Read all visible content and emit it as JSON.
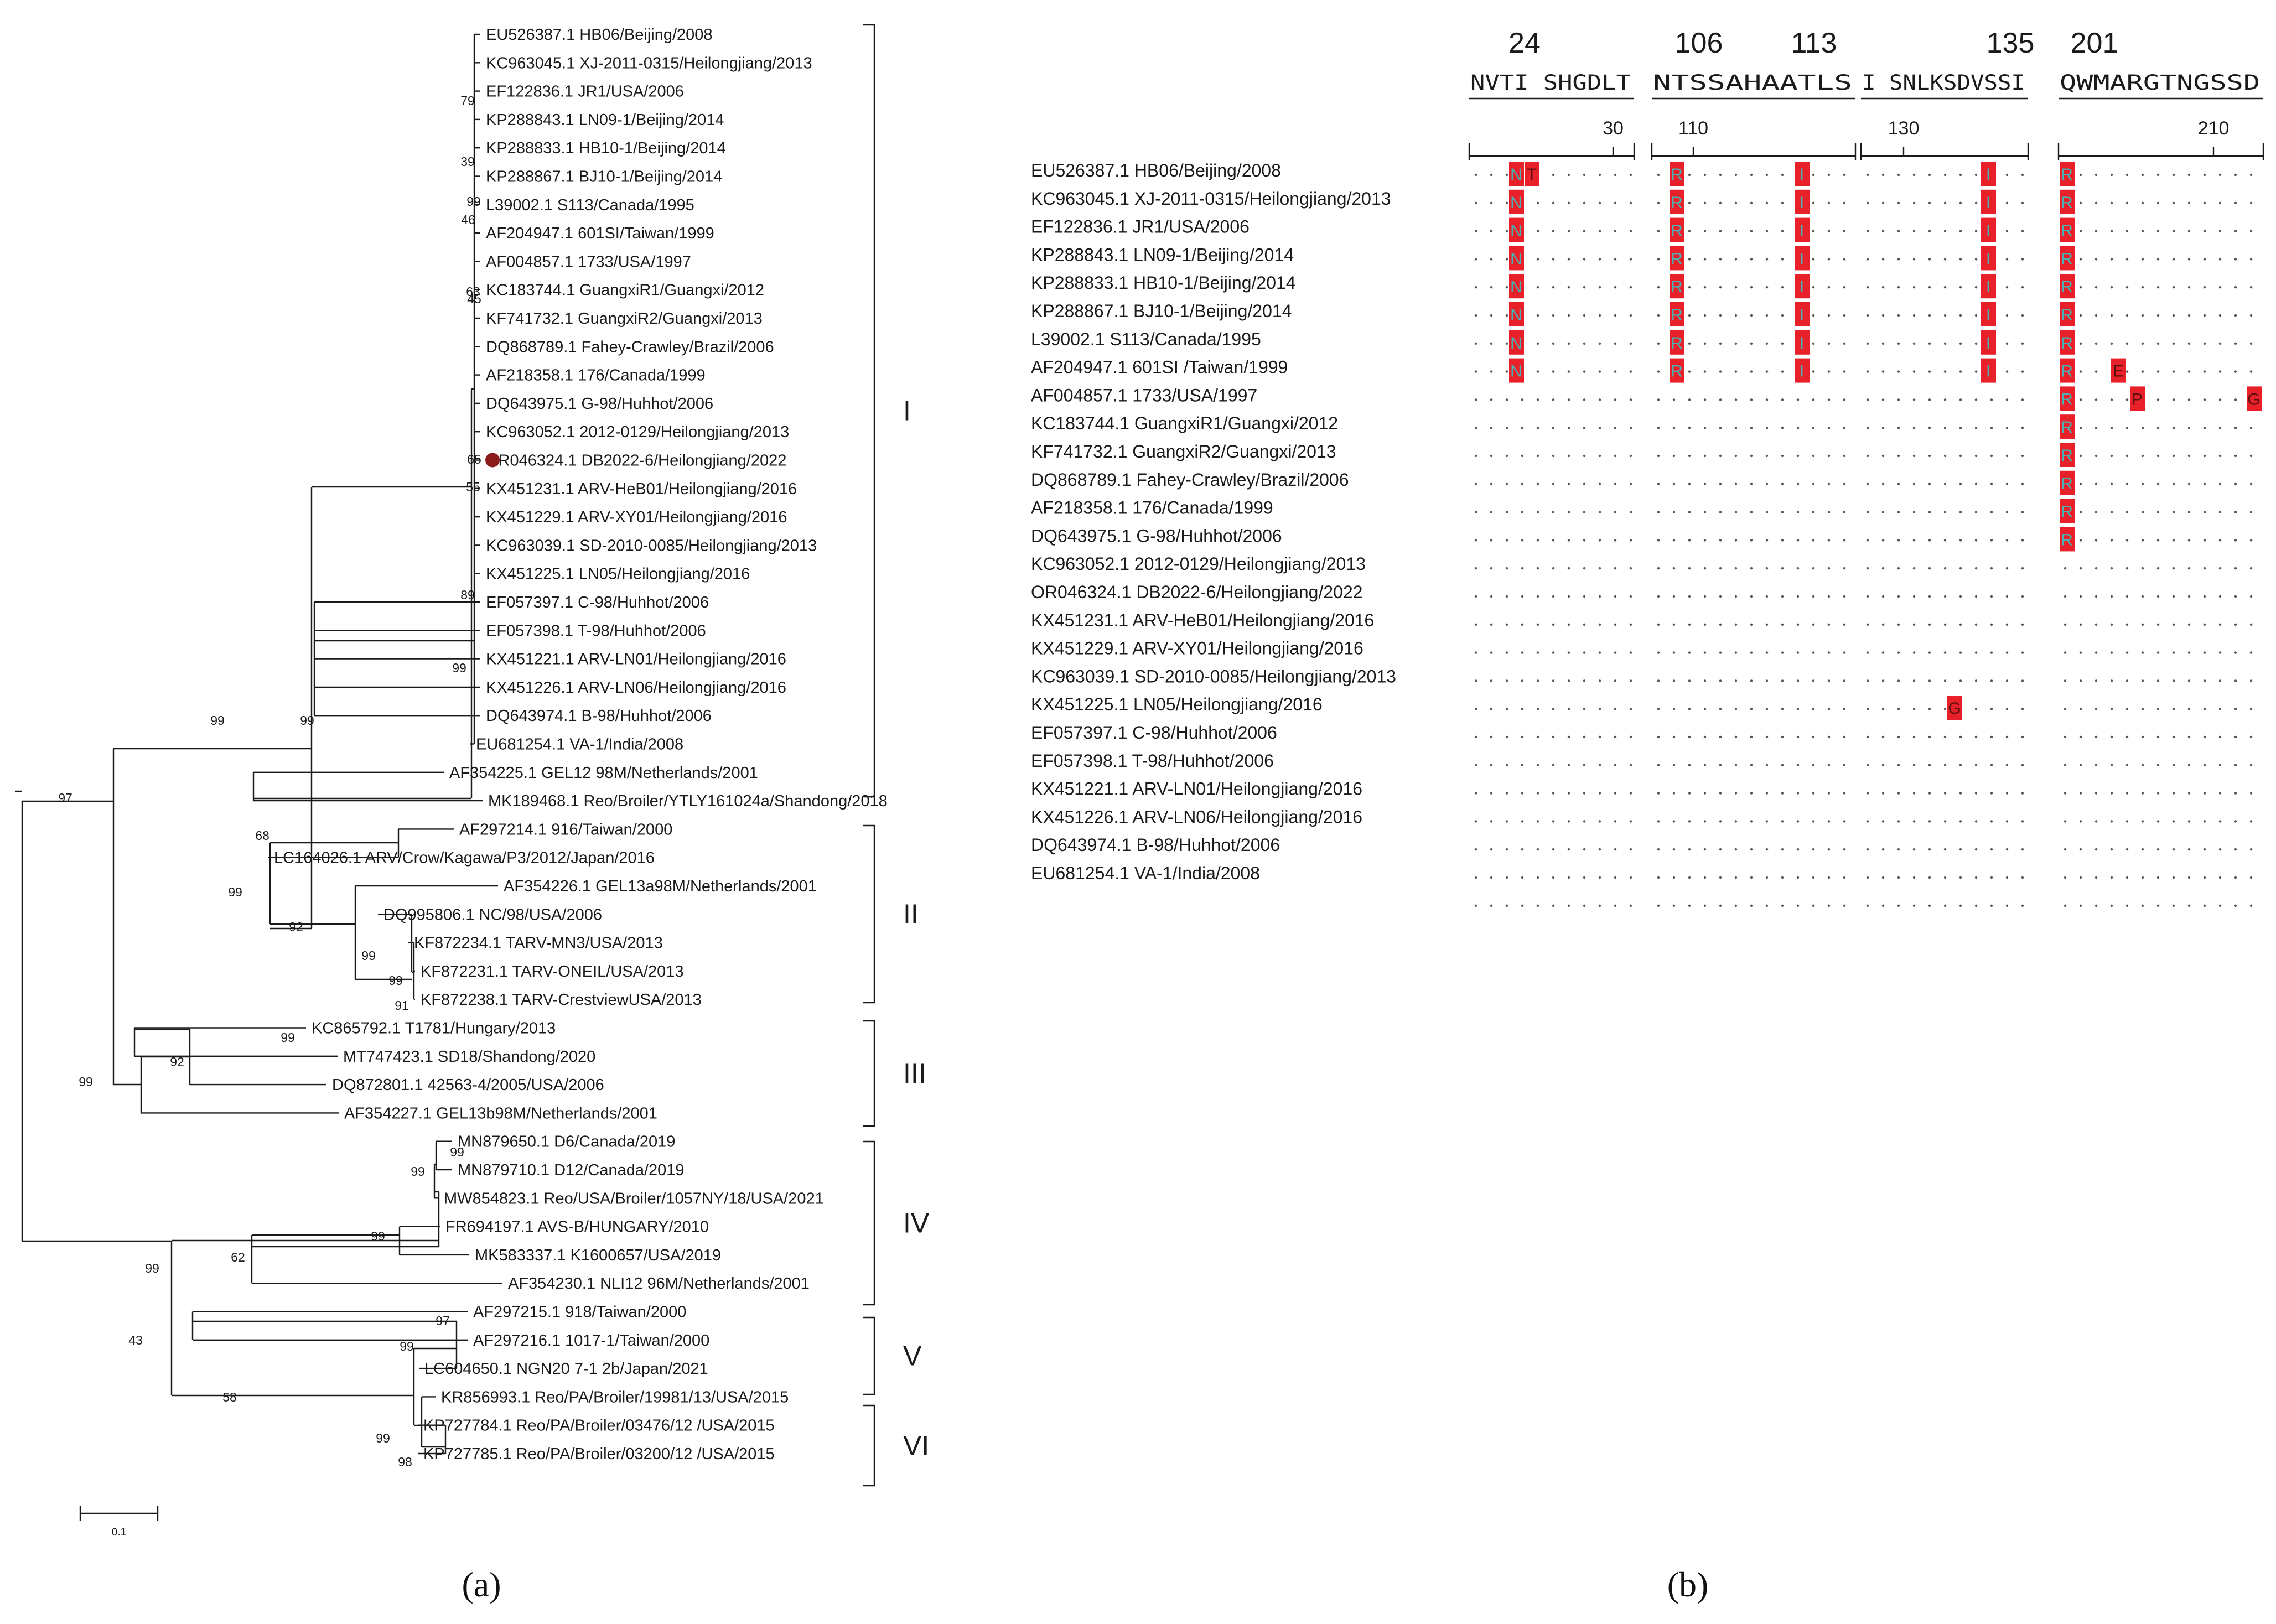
{
  "figure": {
    "caption_a": "(a)",
    "caption_b": "(b)",
    "accent_color": "#e8202a",
    "highlight_text_color": "#e8202a"
  },
  "tree": {
    "scale_label": "0.1",
    "leaves": [
      "EU526387.1 HB06/Beijing/2008",
      "KC963045.1 XJ-2011-0315/Heilongjiang/2013",
      "EF122836.1 JR1/USA/2006",
      "KP288843.1 LN09-1/Beijing/2014",
      "KP288833.1 HB10-1/Beijing/2014",
      "KP288867.1 BJ10-1/Beijing/2014",
      "L39002.1 S113/Canada/1995",
      "AF204947.1 601SI/Taiwan/1999",
      "AF004857.1 1733/USA/1997",
      "KC183744.1 GuangxiR1/Guangxi/2012",
      "KF741732.1 GuangxiR2/Guangxi/2013",
      "DQ868789.1 Fahey-Crawley/Brazil/2006",
      "AF218358.1 176/Canada/1999",
      "DQ643975.1 G-98/Huhhot/2006",
      "KC963052.1 2012-0129/Heilongjiang/2013",
      "OR046324.1 DB2022-6/Heilongjiang/2022",
      "KX451231.1 ARV-HeB01/Heilongjiang/2016",
      "KX451229.1 ARV-XY01/Heilongjiang/2016",
      "KC963039.1 SD-2010-0085/Heilongjiang/2013",
      "KX451225.1 LN05/Heilongjiang/2016",
      "EF057397.1 C-98/Huhhot/2006",
      "EF057398.1 T-98/Huhhot/2006",
      "KX451221.1 ARV-LN01/Heilongjiang/2016",
      "KX451226.1 ARV-LN06/Heilongjiang/2016",
      "DQ643974.1 B-98/Huhhot/2006",
      "EU681254.1 VA-1/India/2008",
      "AF354225.1 GEL12 98M/Netherlands/2001",
      "MK189468.1 Reo/Broiler/YTLY161024a/Shandong/2018",
      "AF297214.1 916/Taiwan/2000",
      "LC164026.1 ARV/Crow/Kagawa/P3/2012/Japan/2016",
      "AF354226.1 GEL13a98M/Netherlands/2001",
      "DQ995806.1 NC/98/USA/2006",
      "KF872234.1 TARV-MN3/USA/2013",
      "KF872231.1 TARV-ONEIL/USA/2013",
      "KF872238.1 TARV-CrestviewUSA/2013",
      "KC865792.1 T1781/Hungary/2013",
      "MT747423.1 SD18/Shandong/2020",
      "DQ872801.1 42563-4/2005/USA/2006",
      "AF354227.1 GEL13b98M/Netherlands/2001",
      "MN879650.1 D6/Canada/2019",
      "MN879710.1 D12/Canada/2019",
      "MW854823.1 Reo/USA/Broiler/1057NY/18/USA/2021",
      "FR694197.1 AVS-B/HUNGARY/2010",
      "MK583337.1 K1600657/USA/2019",
      "AF354230.1 NLI12 96M/Netherlands/2001",
      "AF297215.1 918/Taiwan/2000",
      "AF297216.1 1017-1/Taiwan/2000",
      "LC604650.1 NGN20 7-1 2b/Japan/2021",
      "KR856993.1 Reo/PA/Broiler/19981/13/USA/2015",
      "KP727784.1 Reo/PA/Broiler/03476/12 /USA/2015",
      "KP727785.1 Reo/PA/Broiler/03200/12 /USA/2015"
    ],
    "bootstrap_values": [
      "79",
      "39",
      "99",
      "46",
      "63",
      "45",
      "65",
      "55",
      "89",
      "99",
      "99",
      "99",
      "97",
      "68",
      "99",
      "92",
      "99",
      "99",
      "91",
      "99",
      "92",
      "99",
      "99",
      "99",
      "99",
      "62",
      "99",
      "43",
      "97",
      "99",
      "58",
      "99",
      "98"
    ],
    "clades": [
      "I",
      "II",
      "III",
      "IV",
      "V",
      "VI"
    ]
  },
  "alignment": {
    "positions": [
      "24",
      "106",
      "113",
      "135",
      "201"
    ],
    "blocks": [
      {
        "consensus": "NVTI SHGDLT",
        "tick": "30"
      },
      {
        "consensus": "NTSSAHAATLS",
        "tick": "110"
      },
      {
        "consensus": "I SNLKSDVSSI",
        "tick": "130"
      },
      {
        "consensus": "QWMARGTNGSSD",
        "tick": "210"
      }
    ],
    "sequences": [
      {
        "name": "EU526387.1 HB06/Beijing/2008",
        "mutations": [
          "N",
          "T",
          "R",
          "I",
          "I",
          "R"
        ]
      },
      {
        "name": "KC963045.1 XJ-2011-0315/Heilongjiang/2013",
        "mutations": [
          "N",
          "R",
          "I",
          "I",
          "R"
        ]
      },
      {
        "name": "EF122836.1 JR1/USA/2006",
        "mutations": [
          "N",
          "R",
          "I",
          "I",
          "R"
        ]
      },
      {
        "name": "KP288843.1 LN09-1/Beijing/2014",
        "mutations": [
          "N",
          "R",
          "I",
          "I",
          "R"
        ]
      },
      {
        "name": "KP288833.1 HB10-1/Beijing/2014",
        "mutations": [
          "N",
          "R",
          "I",
          "I",
          "R"
        ]
      },
      {
        "name": "KP288867.1 BJ10-1/Beijing/2014",
        "mutations": [
          "N",
          "R",
          "I",
          "I",
          "R"
        ]
      },
      {
        "name": "L39002.1 S113/Canada/1995",
        "mutations": [
          "N",
          "R",
          "I",
          "I",
          "R"
        ]
      },
      {
        "name": "AF204947.1 601SI /Taiwan/1999",
        "mutations": [
          "N",
          "R",
          "I",
          "I",
          "R",
          "E"
        ]
      },
      {
        "name": "AF004857.1 1733/USA/1997",
        "mutations": [
          "R",
          "P",
          "G"
        ]
      },
      {
        "name": "KC183744.1 GuangxiR1/Guangxi/2012",
        "mutations": [
          "R"
        ]
      },
      {
        "name": "KF741732.1 GuangxiR2/Guangxi/2013",
        "mutations": [
          "R"
        ]
      },
      {
        "name": "DQ868789.1 Fahey-Crawley/Brazil/2006",
        "mutations": [
          "R"
        ]
      },
      {
        "name": "AF218358.1 176/Canada/1999",
        "mutations": [
          "R"
        ]
      },
      {
        "name": "DQ643975.1 G-98/Huhhot/2006",
        "mutations": [
          "R"
        ]
      },
      {
        "name": "KC963052.1 2012-0129/Heilongjiang/2013",
        "mutations": []
      },
      {
        "name": "OR046324.1 DB2022-6/Heilongjiang/2022",
        "mutations": [],
        "highlight": true
      },
      {
        "name": "KX451231.1 ARV-HeB01/Heilongjiang/2016",
        "mutations": []
      },
      {
        "name": "KX451229.1 ARV-XY01/Heilongjiang/2016",
        "mutations": []
      },
      {
        "name": "KC963039.1 SD-2010-0085/Heilongjiang/2013",
        "mutations": []
      },
      {
        "name": "KX451225.1 LN05/Heilongjiang/2016",
        "mutations": [
          "G"
        ]
      },
      {
        "name": "EF057397.1 C-98/Huhhot/2006",
        "mutations": []
      },
      {
        "name": "EF057398.1 T-98/Huhhot/2006",
        "mutations": []
      },
      {
        "name": "KX451221.1 ARV-LN01/Heilongjiang/2016",
        "mutations": []
      },
      {
        "name": "KX451226.1 ARV-LN06/Heilongjiang/2016",
        "mutations": []
      },
      {
        "name": "DQ643974.1 B-98/Huhhot/2006",
        "mutations": []
      },
      {
        "name": "EU681254.1 VA-1/India/2008",
        "mutations": []
      }
    ]
  }
}
